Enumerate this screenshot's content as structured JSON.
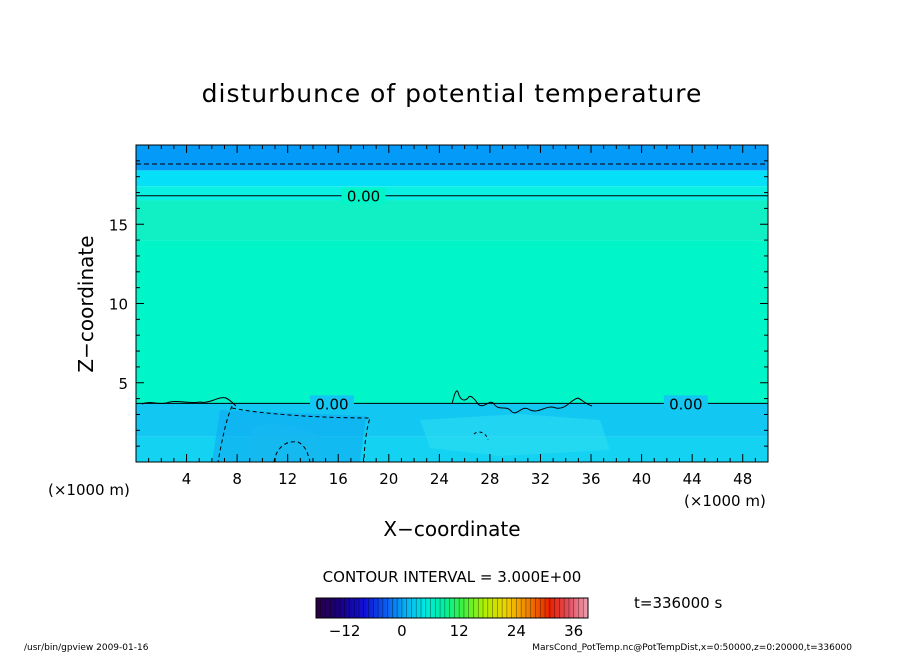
{
  "chart_data": {
    "type": "heatmap",
    "title": "disturbunce of potential temperature",
    "xlabel": "X−coordinate",
    "ylabel": "Z−coordinate",
    "x_unit_left": "(×1000 m)",
    "x_unit_right": "(×1000 m)",
    "xlim": [
      0,
      50
    ],
    "ylim": [
      0,
      20
    ],
    "xticks": [
      4,
      8,
      12,
      16,
      20,
      24,
      28,
      32,
      36,
      40,
      44,
      48
    ],
    "yticks": [
      5,
      10,
      15
    ],
    "bands": [
      {
        "z_from": 0,
        "z_to": 1.6,
        "color": "#14d2f2"
      },
      {
        "z_from": 1.6,
        "z_to": 3.7,
        "color": "#12c8f3"
      },
      {
        "z_from": 3.7,
        "z_to": 14.0,
        "color": "#00f5c8"
      },
      {
        "z_from": 14.0,
        "z_to": 16.5,
        "color": "#10f0c4"
      },
      {
        "z_from": 16.5,
        "z_to": 17.4,
        "color": "#0cf0e4"
      },
      {
        "z_from": 17.4,
        "z_to": 18.4,
        "color": "#05dff7"
      },
      {
        "z_from": 18.4,
        "z_to": 20.0,
        "color": "#049af7"
      }
    ],
    "contours": [
      {
        "level": "0.00",
        "z": 16.8,
        "style": "solid"
      },
      {
        "level": "0.00",
        "z": 3.7,
        "style": "solid"
      },
      {
        "level": "",
        "z": 18.8,
        "style": "dashed"
      }
    ],
    "contour_interval": "CONTOUR INTERVAL = 3.000E+00",
    "colorbar": {
      "ticks": [
        "−12",
        "0",
        "12",
        "24",
        "36"
      ],
      "tick_values": [
        -12,
        0,
        12,
        24,
        36
      ],
      "range": [
        -18,
        39
      ]
    },
    "time_label": "t=336000 s"
  },
  "footer": {
    "left": "/usr/bin/gpview   2009-01-16",
    "right": "MarsCond_PotTemp.nc@PotTempDist,x=0:50000,z=0:20000,t=336000"
  }
}
